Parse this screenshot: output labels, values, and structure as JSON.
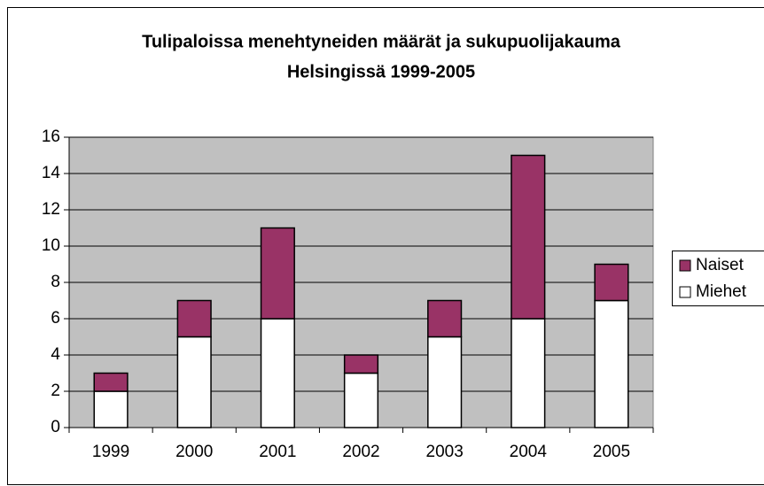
{
  "chart_data": {
    "type": "stacked_bar",
    "title": [
      "Tulipaloissa menehtyneiden määrät ja sukupuolijakauma",
      "Helsingissä 1999-2005"
    ],
    "categories": [
      "1999",
      "2000",
      "2001",
      "2002",
      "2003",
      "2004",
      "2005"
    ],
    "series": [
      {
        "name": "Miehet",
        "color": "#ffffff",
        "values": [
          2,
          5,
          6,
          3,
          5,
          6,
          7
        ]
      },
      {
        "name": "Naiset",
        "color": "#993366",
        "values": [
          1,
          2,
          5,
          1,
          2,
          9,
          2
        ]
      }
    ],
    "ylim": [
      0,
      16
    ],
    "yticks": [
      0,
      2,
      4,
      6,
      8,
      10,
      12,
      14,
      16
    ],
    "grid": true,
    "legend": "right"
  }
}
